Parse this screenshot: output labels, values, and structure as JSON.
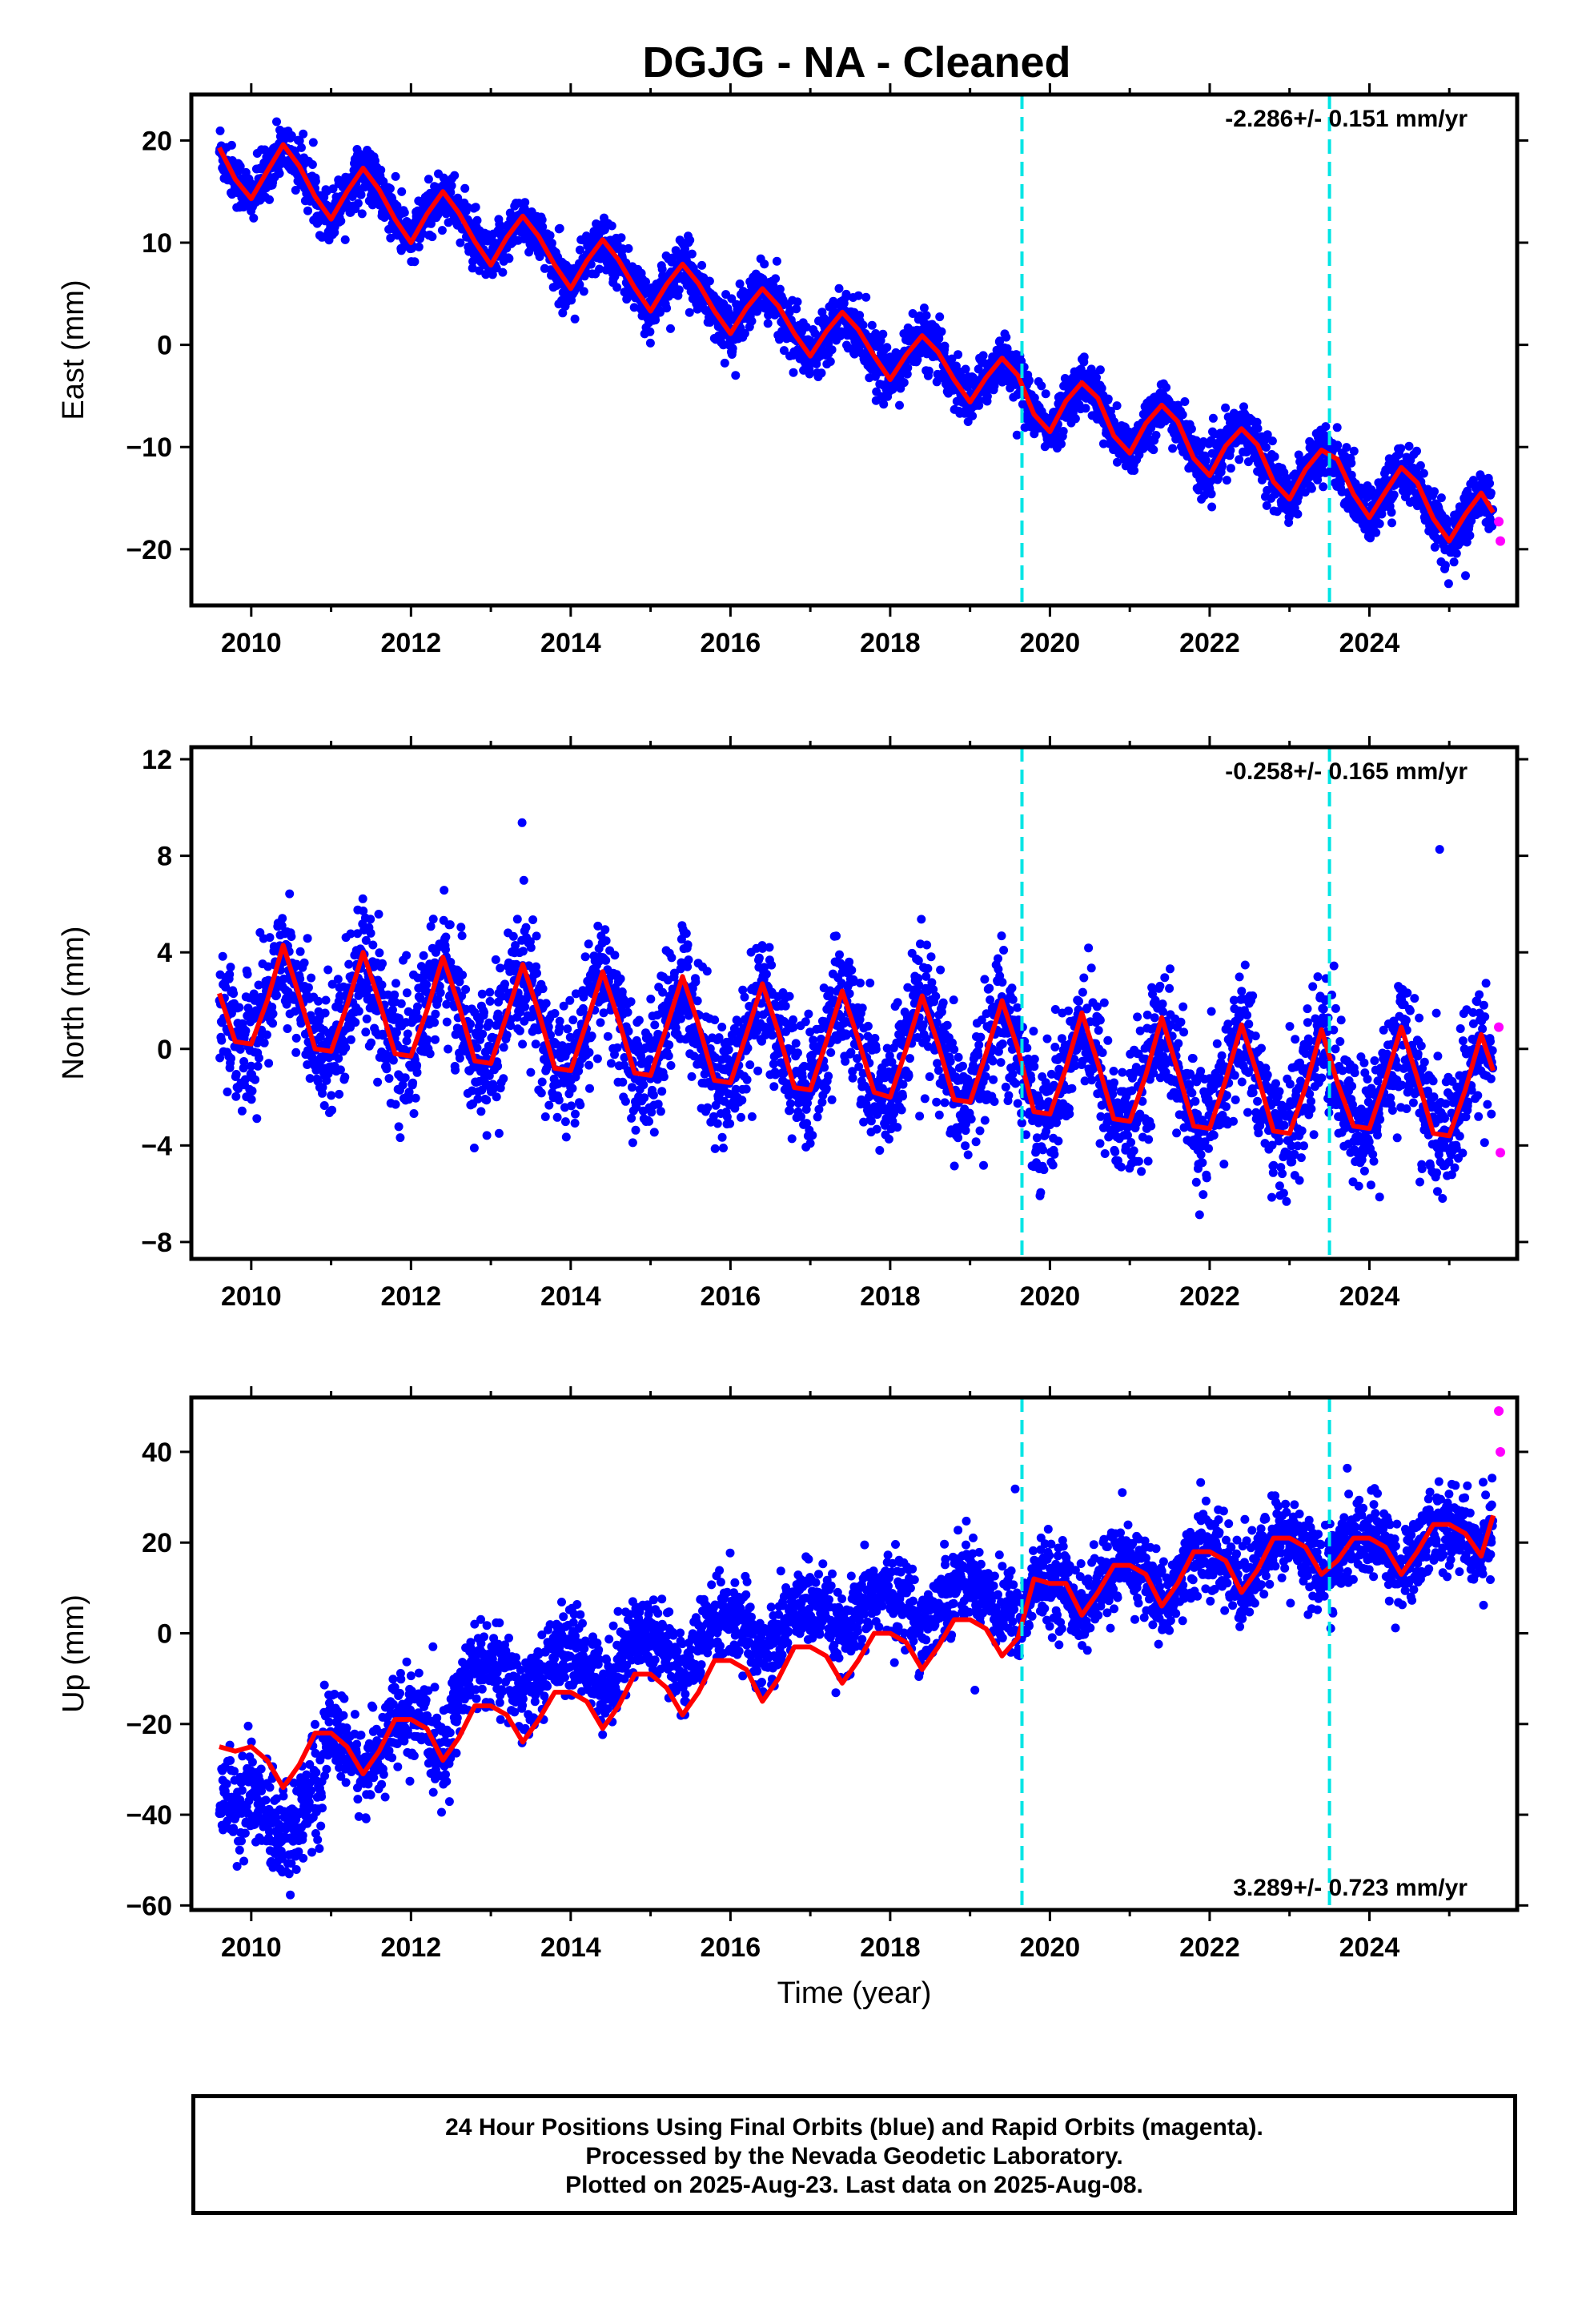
{
  "title": "DGJG  - NA - Cleaned",
  "footer": {
    "line1": "24 Hour Positions Using Final Orbits (blue) and Rapid Orbits (magenta).",
    "line2": "Processed by the Nevada Geodetic Laboratory.",
    "line3": "Plotted on 2025-Aug-23. Last data on 2025-Aug-08."
  },
  "colors": {
    "final": "#0000ff",
    "rapid": "#ff00ff",
    "model": "#ff0000",
    "event": "#00e5e5"
  },
  "chart_data": [
    {
      "type": "scatter",
      "id": "east",
      "ylabel": "East (mm)",
      "xlabel": "",
      "xlim": [
        2009.25,
        2025.85
      ],
      "ylim": [
        -25.5,
        24.5
      ],
      "xticks": [
        "2010",
        "2012",
        "2014",
        "2016",
        "2018",
        "2020",
        "2022",
        "2024"
      ],
      "yticks": [
        "−20",
        "−10",
        "0",
        "10",
        "20"
      ],
      "rate_label": "-2.286+/- 0.151 mm/yr",
      "rate_position": "top-right",
      "event_lines": [
        2019.65,
        2023.5
      ],
      "model": {
        "name": "",
        "x": [
          2009.6,
          2009.8,
          2010.0,
          2010.2,
          2010.4,
          2010.6,
          2010.8,
          2011.0,
          2011.2,
          2011.4,
          2011.6,
          2011.8,
          2012.0,
          2012.2,
          2012.4,
          2012.6,
          2012.8,
          2013.0,
          2013.2,
          2013.4,
          2013.6,
          2013.8,
          2014.0,
          2014.2,
          2014.4,
          2014.6,
          2014.8,
          2015.0,
          2015.2,
          2015.4,
          2015.6,
          2015.8,
          2016.0,
          2016.2,
          2016.4,
          2016.6,
          2016.8,
          2017.0,
          2017.2,
          2017.4,
          2017.6,
          2017.8,
          2018.0,
          2018.2,
          2018.4,
          2018.6,
          2018.8,
          2019.0,
          2019.2,
          2019.4,
          2019.6,
          2019.8,
          2020.0,
          2020.2,
          2020.4,
          2020.6,
          2020.8,
          2021.0,
          2021.2,
          2021.4,
          2021.6,
          2021.8,
          2022.0,
          2022.2,
          2022.4,
          2022.6,
          2022.8,
          2023.0,
          2023.2,
          2023.4,
          2023.6,
          2023.8,
          2024.0,
          2024.2,
          2024.4,
          2024.6,
          2024.8,
          2025.0,
          2025.2,
          2025.4,
          2025.55
        ],
        "y": [
          19.3,
          16.2,
          14.3,
          17.0,
          19.6,
          17.5,
          14.5,
          12.3,
          15.0,
          17.3,
          15.2,
          12.3,
          10.0,
          12.8,
          15.0,
          12.9,
          10.1,
          7.8,
          10.5,
          12.6,
          10.6,
          7.8,
          5.5,
          8.2,
          10.3,
          8.3,
          5.6,
          3.3,
          5.9,
          7.9,
          6.0,
          3.3,
          1.1,
          3.6,
          5.5,
          3.8,
          1.1,
          -1.1,
          1.3,
          3.2,
          1.5,
          -1.1,
          -3.4,
          -1.0,
          0.9,
          -0.7,
          -3.4,
          -5.6,
          -3.2,
          -1.3,
          -3.0,
          -6.8,
          -8.5,
          -5.5,
          -3.7,
          -5.2,
          -8.9,
          -10.6,
          -7.7,
          -5.9,
          -7.5,
          -11.1,
          -12.8,
          -9.9,
          -8.2,
          -9.8,
          -13.4,
          -15.1,
          -12.2,
          -10.3,
          -11.2,
          -14.6,
          -16.9,
          -14.4,
          -12.0,
          -13.5,
          -17.0,
          -19.2,
          -16.6,
          -14.5,
          -16.4
        ]
      },
      "rapid": {
        "x": [
          2025.62,
          2025.64
        ],
        "y": [
          -17.3,
          -19.2
        ]
      }
    },
    {
      "type": "scatter",
      "id": "north",
      "ylabel": "North (mm)",
      "xlabel": "",
      "xlim": [
        2009.25,
        2025.85
      ],
      "ylim": [
        -8.7,
        12.5
      ],
      "xticks": [
        "2010",
        "2012",
        "2014",
        "2016",
        "2018",
        "2020",
        "2022",
        "2024"
      ],
      "yticks": [
        "−8",
        "−4",
        "0",
        "4",
        "8",
        "12"
      ],
      "rate_label": "-0.258+/- 0.165 mm/yr",
      "rate_position": "top-right",
      "event_lines": [
        2019.65,
        2023.5
      ],
      "model": {
        "name": "",
        "x": [
          2009.6,
          2009.8,
          2010.0,
          2010.2,
          2010.4,
          2010.6,
          2010.8,
          2011.0,
          2011.2,
          2011.4,
          2011.6,
          2011.8,
          2012.0,
          2012.2,
          2012.4,
          2012.6,
          2012.8,
          2013.0,
          2013.2,
          2013.4,
          2013.6,
          2013.8,
          2014.0,
          2014.2,
          2014.4,
          2014.6,
          2014.8,
          2015.0,
          2015.2,
          2015.4,
          2015.6,
          2015.8,
          2016.0,
          2016.2,
          2016.4,
          2016.6,
          2016.8,
          2017.0,
          2017.2,
          2017.4,
          2017.6,
          2017.8,
          2018.0,
          2018.2,
          2018.4,
          2018.6,
          2018.8,
          2019.0,
          2019.2,
          2019.4,
          2019.6,
          2019.8,
          2020.0,
          2020.2,
          2020.4,
          2020.6,
          2020.8,
          2021.0,
          2021.2,
          2021.4,
          2021.6,
          2021.8,
          2022.0,
          2022.2,
          2022.4,
          2022.6,
          2022.8,
          2023.0,
          2023.2,
          2023.4,
          2023.6,
          2023.8,
          2024.0,
          2024.2,
          2024.4,
          2024.6,
          2024.8,
          2025.0,
          2025.2,
          2025.4,
          2025.55
        ],
        "y": [
          2.3,
          0.3,
          0.2,
          2.0,
          4.3,
          2.2,
          0.0,
          -0.1,
          1.8,
          4.0,
          2.0,
          -0.2,
          -0.3,
          1.6,
          3.8,
          1.8,
          -0.5,
          -0.6,
          1.4,
          3.5,
          1.5,
          -0.8,
          -0.9,
          1.1,
          3.2,
          1.2,
          -1.0,
          -1.1,
          0.9,
          3.0,
          1.0,
          -1.3,
          -1.4,
          0.6,
          2.7,
          0.7,
          -1.6,
          -1.7,
          0.3,
          2.4,
          0.4,
          -1.8,
          -2.0,
          0.0,
          2.2,
          0.2,
          -2.1,
          -2.2,
          -0.2,
          2.0,
          0.0,
          -2.6,
          -2.7,
          -0.8,
          1.5,
          -0.6,
          -2.9,
          -3.0,
          -1.1,
          1.3,
          -0.9,
          -3.2,
          -3.3,
          -1.3,
          1.0,
          -1.1,
          -3.4,
          -3.5,
          -1.6,
          0.8,
          -1.4,
          -3.2,
          -3.3,
          -1.3,
          0.9,
          -1.2,
          -3.5,
          -3.6,
          -1.7,
          0.6,
          -0.9
        ]
      },
      "rapid": {
        "x": [
          2025.62,
          2025.64
        ],
        "y": [
          0.9,
          -4.3
        ]
      }
    },
    {
      "type": "scatter",
      "id": "up",
      "ylabel": "Up (mm)",
      "xlabel": "Time (year)",
      "xlim": [
        2009.25,
        2025.85
      ],
      "ylim": [
        -61,
        52
      ],
      "xticks": [
        "2010",
        "2012",
        "2014",
        "2016",
        "2018",
        "2020",
        "2022",
        "2024"
      ],
      "yticks": [
        "−60",
        "−40",
        "−20",
        "0",
        "20",
        "40"
      ],
      "rate_label": "3.289+/- 0.723 mm/yr",
      "rate_position": "bottom-right",
      "event_lines": [
        2019.65,
        2023.5
      ],
      "model": {
        "name": "",
        "x": [
          2009.6,
          2009.8,
          2010.0,
          2010.2,
          2010.4,
          2010.6,
          2010.8,
          2011.0,
          2011.2,
          2011.4,
          2011.6,
          2011.8,
          2012.0,
          2012.2,
          2012.4,
          2012.6,
          2012.8,
          2013.0,
          2013.2,
          2013.4,
          2013.6,
          2013.8,
          2014.0,
          2014.2,
          2014.4,
          2014.6,
          2014.8,
          2015.0,
          2015.2,
          2015.4,
          2015.6,
          2015.8,
          2016.0,
          2016.2,
          2016.4,
          2016.6,
          2016.8,
          2017.0,
          2017.2,
          2017.4,
          2017.6,
          2017.8,
          2018.0,
          2018.2,
          2018.4,
          2018.6,
          2018.8,
          2019.0,
          2019.2,
          2019.4,
          2019.6,
          2019.8,
          2020.0,
          2020.2,
          2020.4,
          2020.6,
          2020.8,
          2021.0,
          2021.2,
          2021.4,
          2021.6,
          2021.8,
          2022.0,
          2022.2,
          2022.4,
          2022.6,
          2022.8,
          2023.0,
          2023.2,
          2023.4,
          2023.6,
          2023.8,
          2024.0,
          2024.2,
          2024.4,
          2024.6,
          2024.8,
          2025.0,
          2025.2,
          2025.4,
          2025.55
        ],
        "y": [
          -25,
          -26,
          -25,
          -28,
          -34,
          -29,
          -22,
          -22,
          -25,
          -31,
          -26,
          -19,
          -19,
          -21,
          -28,
          -23,
          -16,
          -16,
          -18,
          -24,
          -19,
          -13,
          -13,
          -15,
          -21,
          -16,
          -9,
          -9,
          -12,
          -18,
          -13,
          -6,
          -6,
          -8,
          -15,
          -10,
          -3,
          -3,
          -5,
          -11,
          -6,
          0,
          0,
          -2,
          -8,
          -3,
          3,
          3,
          1,
          -5,
          -1,
          12,
          11,
          11,
          4,
          9,
          15,
          15,
          13,
          6,
          11,
          18,
          18,
          16,
          9,
          14,
          21,
          21,
          19,
          13,
          16,
          21,
          21,
          19,
          13,
          18,
          24,
          24,
          22,
          17,
          26
        ]
      },
      "rapid": {
        "x": [
          2025.62,
          2025.64
        ],
        "y": [
          49,
          40
        ]
      }
    }
  ]
}
